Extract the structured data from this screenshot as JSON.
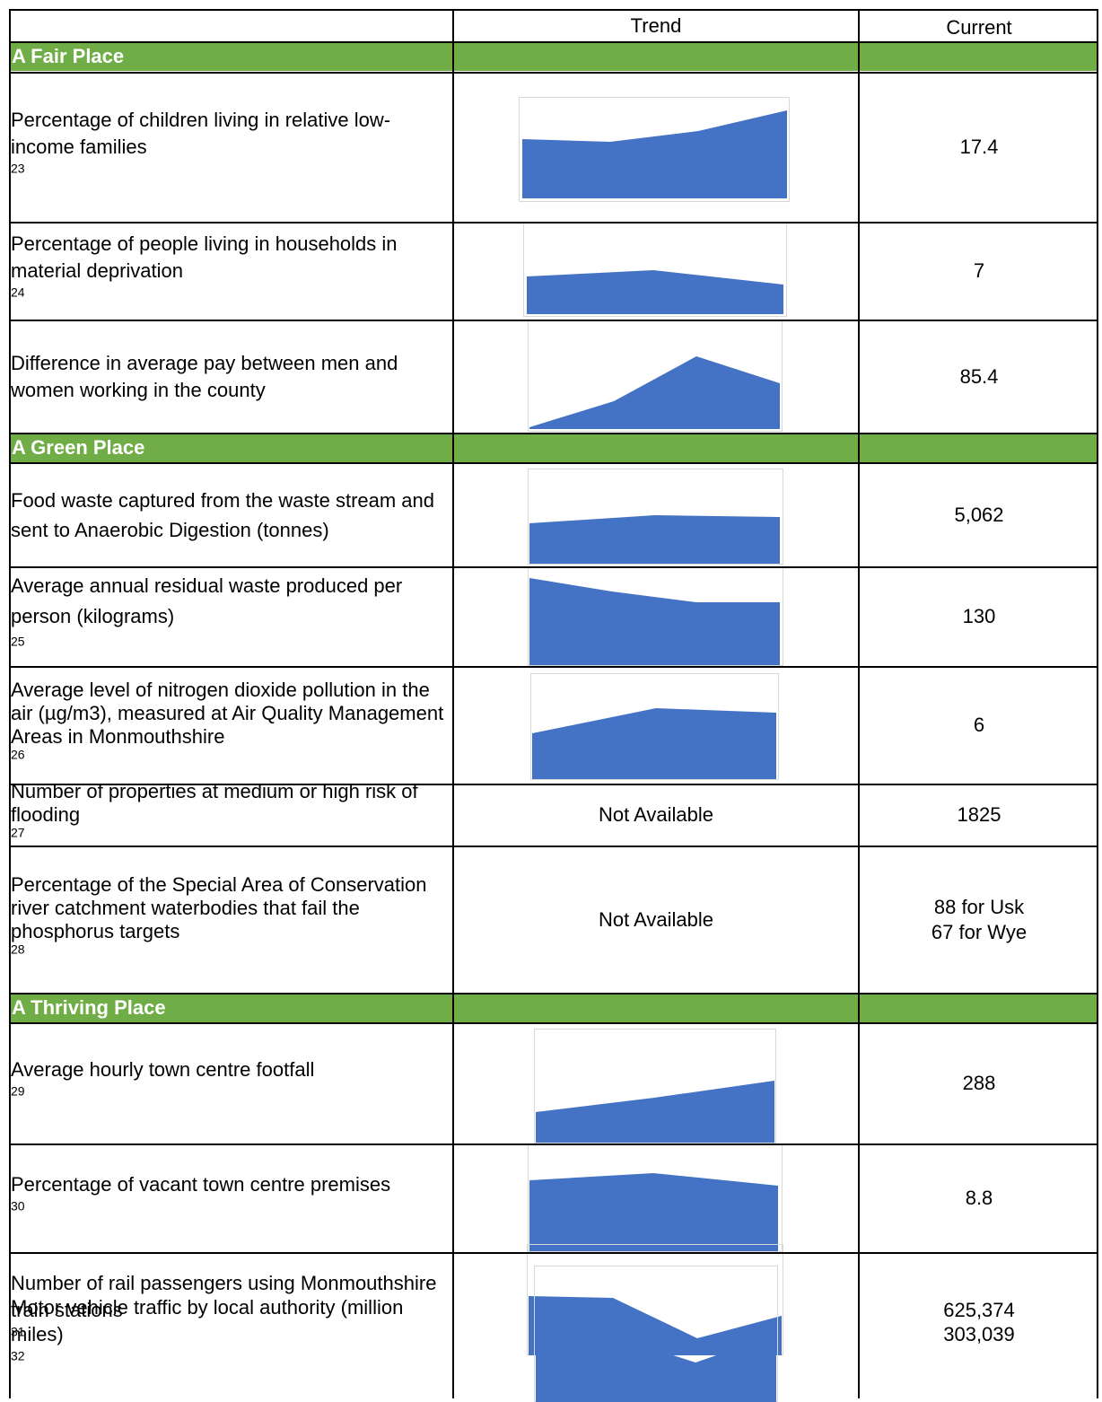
{
  "header": {
    "trend": "Trend",
    "current": "Current"
  },
  "sections": [
    {
      "title": "A Fair Place"
    },
    {
      "title": "A Green Place"
    },
    {
      "title": "A Thriving Place"
    }
  ],
  "rows": [
    {
      "label": "Percentage of children living in relative low-income families",
      "sup": "23",
      "value": "17.4"
    },
    {
      "label": "Percentage of people living in households in material deprivation",
      "sup": "24",
      "value": "7"
    },
    {
      "label": "Difference in average pay between men and women working in the county",
      "sup": "",
      "value": "85.4"
    },
    {
      "label": "Food waste captured from the waste stream and sent to Anaerobic Digestion (tonnes)",
      "sup": "",
      "value": "5,062"
    },
    {
      "label": "Average annual residual waste produced per person (kilograms)",
      "sup": "25",
      "value": "130"
    },
    {
      "label": "Average level of nitrogen dioxide pollution in the air (µg/m3), measured at Air Quality Management Areas in Monmouthshire",
      "sup": "26",
      "value": "6"
    },
    {
      "label": "Number of properties at medium or high risk of flooding ",
      "sup": "27",
      "trend": "Not Available",
      "value": "1825"
    },
    {
      "label": "Percentage of the Special Area of Conservation river catchment waterbodies that fail the phosphorus targets ",
      "sup": "28",
      "trend": "Not Available",
      "value_lines": [
        "88 for Usk",
        "67 for Wye"
      ]
    },
    {
      "label": "Average hourly town centre footfall",
      "sup": "29",
      "value": "288"
    },
    {
      "label": "Percentage of vacant town centre premises",
      "sup": "30",
      "value": "8.8"
    },
    {
      "label": "Number of rail passengers using Monmouthshire train stations",
      "sup": "31",
      "value": "625,374"
    },
    {
      "label": "Motor vehicle traffic by local authority (million miles) ",
      "sup": "32",
      "value": "303,039"
    }
  ],
  "colors": {
    "section_band": "#70ad47",
    "trend_fill": "#4472c4",
    "trend_frame": "#d9d9d9"
  }
}
